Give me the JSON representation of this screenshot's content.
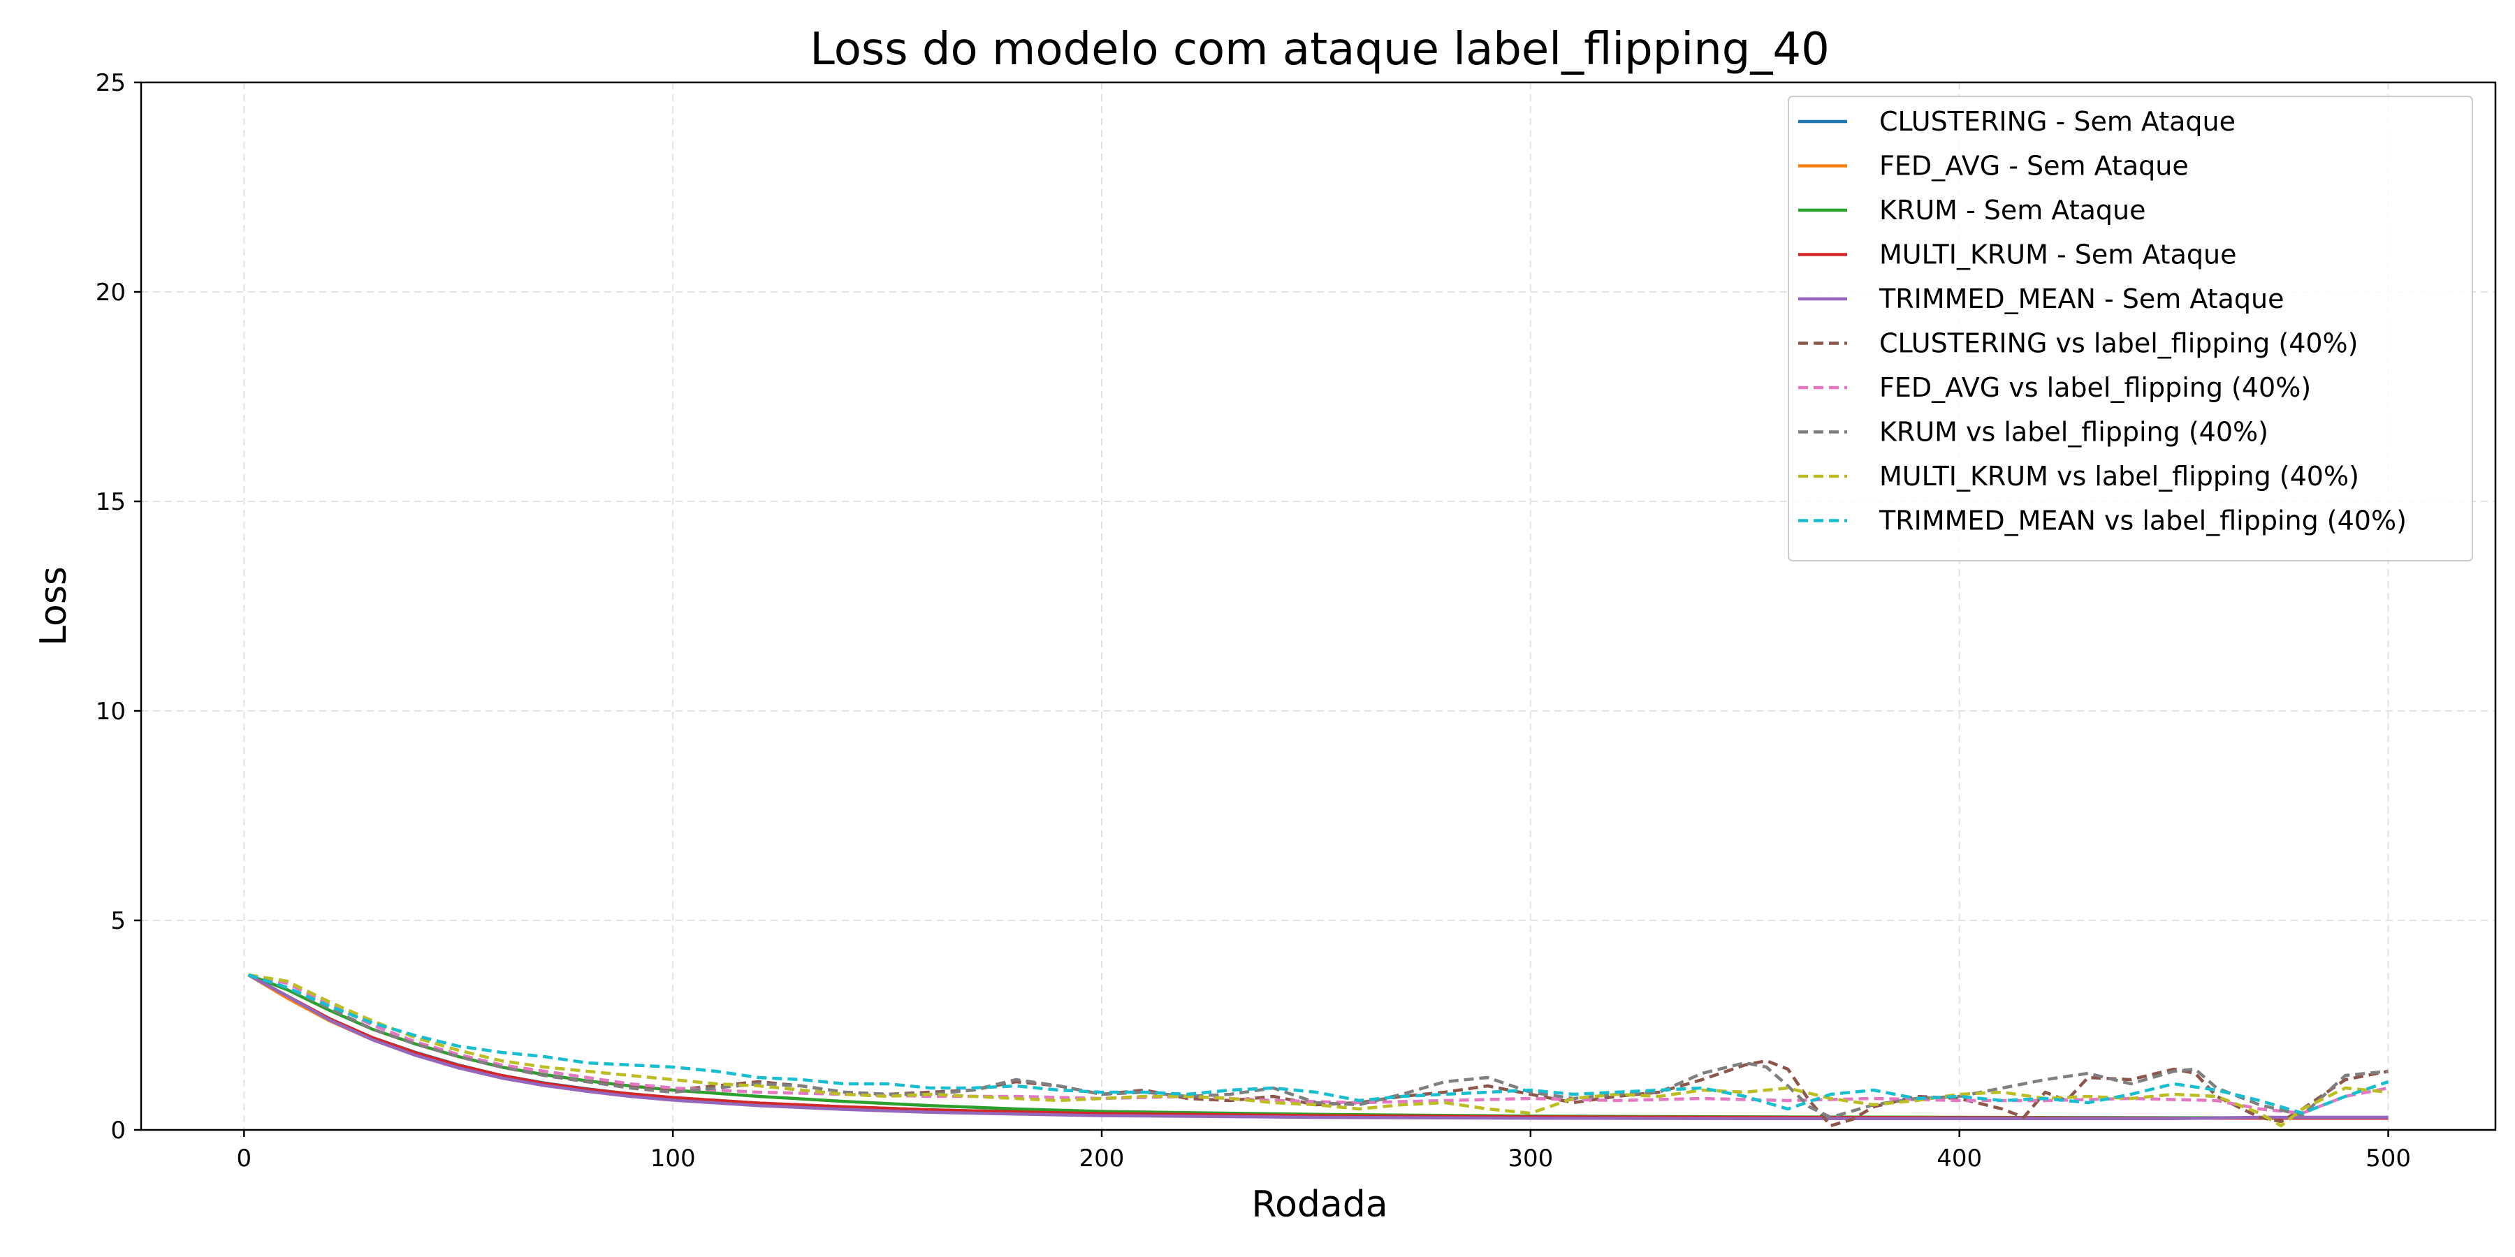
{
  "chart_data": {
    "type": "line",
    "title": "Loss do modelo com ataque label_flipping_40",
    "xlabel": "Rodada",
    "ylabel": "Loss",
    "xlim": [
      -24,
      525
    ],
    "ylim": [
      0,
      25
    ],
    "xticks": [
      0,
      100,
      200,
      300,
      400,
      500
    ],
    "yticks": [
      0,
      5,
      10,
      15,
      20,
      25
    ],
    "grid": true,
    "legend_position": "top-right",
    "series": [
      {
        "name": "CLUSTERING - Sem Ataque",
        "color": "#1f77b4",
        "style": "solid",
        "x": [
          1,
          10,
          20,
          30,
          40,
          50,
          60,
          70,
          80,
          90,
          100,
          120,
          140,
          160,
          180,
          200,
          250,
          300,
          350,
          400,
          450,
          470,
          500
        ],
        "y": [
          3.7,
          3.2,
          2.65,
          2.2,
          1.85,
          1.55,
          1.3,
          1.12,
          0.98,
          0.86,
          0.77,
          0.64,
          0.55,
          0.48,
          0.43,
          0.39,
          0.34,
          0.31,
          0.3,
          0.29,
          0.28,
          0.28,
          0.28
        ]
      },
      {
        "name": "FED_AVG - Sem Ataque",
        "color": "#ff7f0e",
        "style": "solid",
        "x": [
          1,
          10,
          20,
          30,
          40,
          50,
          60,
          70,
          80,
          90,
          100,
          120,
          140,
          160,
          180,
          200,
          250,
          300,
          350,
          400,
          450,
          470,
          500
        ],
        "y": [
          3.7,
          3.15,
          2.6,
          2.15,
          1.8,
          1.5,
          1.27,
          1.1,
          0.96,
          0.85,
          0.76,
          0.63,
          0.54,
          0.47,
          0.42,
          0.38,
          0.34,
          0.31,
          0.3,
          0.29,
          0.28,
          0.28,
          0.28
        ]
      },
      {
        "name": "KRUM - Sem Ataque",
        "color": "#2ca02c",
        "style": "solid",
        "x": [
          1,
          10,
          20,
          30,
          40,
          50,
          60,
          70,
          80,
          90,
          100,
          120,
          140,
          160,
          180,
          200,
          250,
          300,
          350,
          400,
          450,
          470,
          500
        ],
        "y": [
          3.7,
          3.35,
          2.85,
          2.4,
          2.05,
          1.75,
          1.5,
          1.32,
          1.17,
          1.05,
          0.95,
          0.8,
          0.68,
          0.58,
          0.5,
          0.44,
          0.37,
          0.33,
          0.31,
          0.3,
          0.29,
          0.29,
          0.29
        ]
      },
      {
        "name": "MULTI_KRUM - Sem Ataque",
        "color": "#d62728",
        "style": "solid",
        "x": [
          1,
          10,
          20,
          30,
          40,
          50,
          60,
          70,
          80,
          90,
          100,
          120,
          140,
          160,
          180,
          200,
          250,
          300,
          350,
          400,
          450,
          470,
          500
        ],
        "y": [
          3.7,
          3.2,
          2.65,
          2.2,
          1.84,
          1.54,
          1.3,
          1.11,
          0.97,
          0.86,
          0.77,
          0.64,
          0.55,
          0.48,
          0.43,
          0.39,
          0.34,
          0.31,
          0.3,
          0.29,
          0.28,
          0.28,
          0.28
        ]
      },
      {
        "name": "TRIMMED_MEAN - Sem Ataque",
        "color": "#9467bd",
        "style": "solid",
        "x": [
          1,
          10,
          20,
          30,
          40,
          50,
          60,
          70,
          80,
          90,
          100,
          120,
          140,
          160,
          180,
          200,
          250,
          300,
          350,
          400,
          450,
          470,
          500
        ],
        "y": [
          3.7,
          3.2,
          2.62,
          2.15,
          1.78,
          1.48,
          1.24,
          1.06,
          0.92,
          0.8,
          0.71,
          0.58,
          0.49,
          0.42,
          0.38,
          0.34,
          0.3,
          0.28,
          0.27,
          0.27,
          0.27,
          0.3,
          0.3
        ]
      },
      {
        "name": "CLUSTERING vs label_flipping (40%)",
        "color": "#8c564b",
        "style": "dashed",
        "x": [
          1,
          10,
          20,
          30,
          40,
          50,
          60,
          70,
          80,
          90,
          100,
          110,
          120,
          130,
          140,
          150,
          160,
          170,
          180,
          190,
          200,
          210,
          220,
          230,
          240,
          250,
          260,
          270,
          280,
          290,
          300,
          310,
          320,
          330,
          340,
          350,
          355,
          360,
          365,
          370,
          375,
          380,
          390,
          400,
          410,
          415,
          420,
          425,
          430,
          440,
          450,
          455,
          460,
          470,
          475,
          480,
          490,
          500
        ],
        "y": [
          3.7,
          3.4,
          2.9,
          2.4,
          2.05,
          1.75,
          1.5,
          1.3,
          1.15,
          1.05,
          0.95,
          1.05,
          1.15,
          1.05,
          0.9,
          0.85,
          0.9,
          0.95,
          1.15,
          1.05,
          0.85,
          0.95,
          0.75,
          0.7,
          0.8,
          0.6,
          0.65,
          0.8,
          0.9,
          1.05,
          0.85,
          0.65,
          0.8,
          0.9,
          1.2,
          1.55,
          1.65,
          1.45,
          0.7,
          0.1,
          0.25,
          0.55,
          0.8,
          0.75,
          0.5,
          0.3,
          0.9,
          0.7,
          1.25,
          1.2,
          1.45,
          1.35,
          0.8,
          0.3,
          0.2,
          0.5,
          1.2,
          1.4
        ]
      },
      {
        "name": "FED_AVG vs label_flipping (40%)",
        "color": "#e377c2",
        "style": "dashed",
        "x": [
          1,
          10,
          20,
          30,
          40,
          50,
          60,
          70,
          80,
          90,
          100,
          120,
          140,
          160,
          180,
          200,
          220,
          240,
          260,
          280,
          300,
          320,
          340,
          360,
          380,
          400,
          420,
          440,
          460,
          470,
          480,
          490,
          500
        ],
        "y": [
          3.7,
          3.5,
          3.0,
          2.5,
          2.1,
          1.8,
          1.55,
          1.4,
          1.25,
          1.1,
          1.0,
          0.9,
          0.85,
          0.8,
          0.8,
          0.75,
          0.8,
          0.7,
          0.65,
          0.7,
          0.75,
          0.7,
          0.75,
          0.7,
          0.75,
          0.7,
          0.7,
          0.75,
          0.7,
          0.5,
          0.4,
          0.8,
          1.0
        ]
      },
      {
        "name": "KRUM vs label_flipping (40%)",
        "color": "#7f7f7f",
        "style": "dashed",
        "x": [
          1,
          10,
          20,
          30,
          40,
          50,
          60,
          70,
          80,
          90,
          100,
          110,
          120,
          130,
          140,
          150,
          160,
          170,
          180,
          190,
          200,
          210,
          220,
          230,
          240,
          250,
          260,
          270,
          280,
          290,
          300,
          310,
          320,
          330,
          340,
          350,
          355,
          360,
          365,
          370,
          380,
          390,
          400,
          410,
          420,
          430,
          440,
          450,
          455,
          460,
          470,
          480,
          490,
          500
        ],
        "y": [
          3.7,
          3.4,
          2.9,
          2.4,
          2.05,
          1.75,
          1.5,
          1.3,
          1.15,
          1.0,
          0.9,
          1.0,
          1.1,
          1.05,
          0.9,
          0.85,
          0.85,
          0.95,
          1.2,
          1.05,
          0.85,
          0.9,
          0.8,
          0.85,
          1.0,
          0.65,
          0.6,
          0.85,
          1.15,
          1.25,
          0.9,
          0.75,
          0.85,
          0.9,
          1.35,
          1.6,
          1.5,
          1.05,
          0.55,
          0.3,
          0.6,
          0.75,
          0.8,
          1.0,
          1.2,
          1.35,
          1.1,
          1.4,
          1.45,
          1.0,
          0.6,
          0.35,
          1.3,
          1.4
        ]
      },
      {
        "name": "MULTI_KRUM vs label_flipping (40%)",
        "color": "#bcbd22",
        "style": "dashed",
        "x": [
          1,
          10,
          20,
          30,
          40,
          50,
          60,
          70,
          80,
          90,
          100,
          110,
          120,
          130,
          140,
          150,
          160,
          170,
          180,
          190,
          200,
          210,
          220,
          230,
          240,
          250,
          260,
          270,
          280,
          290,
          300,
          310,
          320,
          330,
          340,
          350,
          360,
          370,
          380,
          390,
          400,
          410,
          420,
          430,
          440,
          450,
          460,
          470,
          475,
          480,
          490,
          500
        ],
        "y": [
          3.7,
          3.55,
          3.05,
          2.6,
          2.2,
          1.9,
          1.65,
          1.5,
          1.4,
          1.3,
          1.2,
          1.1,
          1.05,
          0.95,
          0.85,
          0.8,
          0.85,
          0.8,
          0.75,
          0.7,
          0.75,
          0.8,
          0.8,
          0.75,
          0.65,
          0.6,
          0.5,
          0.6,
          0.65,
          0.5,
          0.4,
          0.75,
          0.85,
          0.8,
          0.95,
          0.9,
          1.0,
          0.75,
          0.6,
          0.7,
          0.85,
          0.9,
          0.75,
          0.8,
          0.75,
          0.85,
          0.8,
          0.4,
          0.1,
          0.5,
          1.0,
          0.9
        ]
      },
      {
        "name": "TRIMMED_MEAN vs label_flipping (40%)",
        "color": "#17becf",
        "style": "dashed",
        "x": [
          1,
          10,
          20,
          30,
          40,
          50,
          60,
          70,
          80,
          90,
          100,
          110,
          120,
          130,
          140,
          150,
          160,
          170,
          180,
          190,
          200,
          210,
          220,
          230,
          240,
          250,
          260,
          270,
          280,
          290,
          300,
          310,
          320,
          330,
          340,
          350,
          360,
          370,
          380,
          390,
          400,
          410,
          420,
          430,
          440,
          450,
          460,
          470,
          480,
          490,
          500
        ],
        "y": [
          3.7,
          3.4,
          2.95,
          2.55,
          2.25,
          2.0,
          1.85,
          1.75,
          1.6,
          1.55,
          1.5,
          1.4,
          1.25,
          1.2,
          1.1,
          1.1,
          1.0,
          1.0,
          1.05,
          0.95,
          0.9,
          0.9,
          0.85,
          0.95,
          1.0,
          0.9,
          0.7,
          0.8,
          0.85,
          0.9,
          0.95,
          0.85,
          0.9,
          0.95,
          1.0,
          0.8,
          0.5,
          0.85,
          0.95,
          0.75,
          0.8,
          0.7,
          0.75,
          0.65,
          0.85,
          1.1,
          0.95,
          0.7,
          0.4,
          0.8,
          1.15
        ]
      }
    ]
  }
}
